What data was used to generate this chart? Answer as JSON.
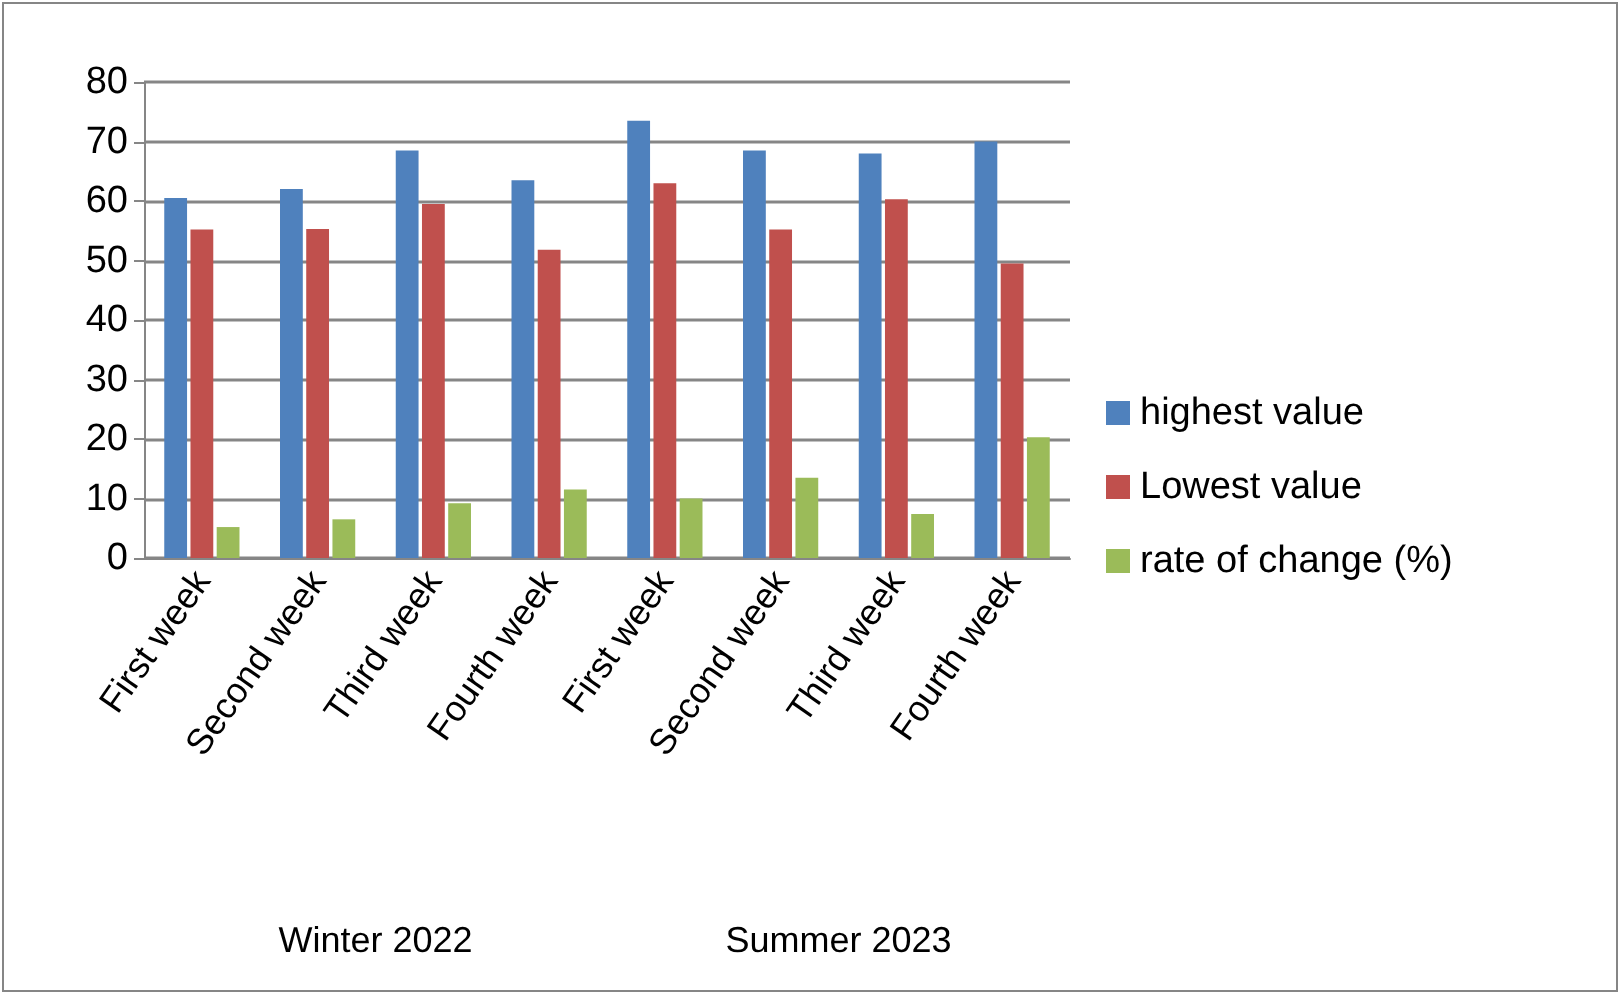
{
  "chart_data": {
    "type": "bar",
    "categories": [
      "First week",
      "Second week",
      "Third week",
      "Fourth week",
      "First week",
      "Second week",
      "Third week",
      "Fourth week"
    ],
    "series": [
      {
        "name": "highest value",
        "color": "#4f81bd",
        "values": [
          60.5,
          62,
          68.5,
          63.5,
          73.5,
          68.5,
          68,
          70
        ]
      },
      {
        "name": "Lowest value",
        "color": "#c0504d",
        "values": [
          55.2,
          55.3,
          59.5,
          51.8,
          63,
          55.2,
          60.3,
          49.5
        ]
      },
      {
        "name": "rate of change (%)",
        "color": "#9bbb59",
        "values": [
          5.2,
          6.5,
          9.2,
          11.5,
          10,
          13.5,
          7.4,
          20.3
        ]
      }
    ],
    "ylim": [
      0,
      80
    ],
    "yticks": [
      0,
      10,
      20,
      30,
      40,
      50,
      60,
      70,
      80
    ],
    "grid": "y",
    "legend": "right",
    "annotations": [
      "Winter 2022",
      "Summer 2023"
    ]
  }
}
